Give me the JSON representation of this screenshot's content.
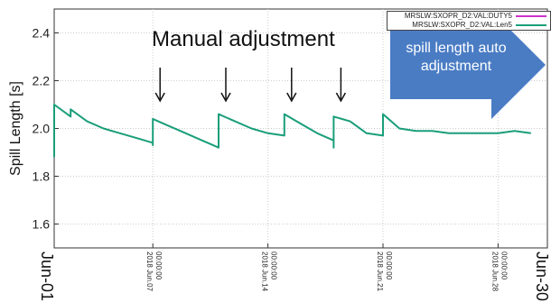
{
  "chart_data": {
    "type": "line",
    "title": "",
    "xlabel": "",
    "ylabel": "Spill Length [s]",
    "x_start": "2018-06-01",
    "x_end": "2018-06-30",
    "ylim": [
      1.5,
      2.5
    ],
    "y_ticks": [
      1.6,
      1.8,
      2.0,
      2.2,
      2.4
    ],
    "x_edge_labels": [
      "Jun-01",
      "Jun-30"
    ],
    "x_tick_labels": [
      {
        "date": "2018-06-07",
        "line1": "2018 Jun.07",
        "line2": "00:00:00"
      },
      {
        "date": "2018-06-14",
        "line1": "2018 Jun.14",
        "line2": "00:00:00"
      },
      {
        "date": "2018-06-21",
        "line1": "2018 Jun.21",
        "line2": "00:00:00"
      },
      {
        "date": "2018-06-28",
        "line1": "2018 Jun.28",
        "line2": "00:00:00"
      }
    ],
    "grid": true,
    "legend_position": "top-right",
    "series": [
      {
        "name": "MRSLW:SXOPR_D2:VAL:DUTY5",
        "color": "#cc33cc",
        "points": []
      },
      {
        "name": "MRSLW:SXOPR_D2:VAL:Len5",
        "color": "#1a9e7a",
        "points": [
          [
            "2018-06-01",
            1.88
          ],
          [
            "2018-06-01",
            2.1
          ],
          [
            "2018-06-02",
            2.05
          ],
          [
            "2018-06-02",
            2.08
          ],
          [
            "2018-06-03",
            2.03
          ],
          [
            "2018-06-04",
            2.0
          ],
          [
            "2018-06-05",
            1.98
          ],
          [
            "2018-06-06",
            1.96
          ],
          [
            "2018-06-07",
            1.94
          ],
          [
            "2018-06-07",
            1.93
          ],
          [
            "2018-06-07",
            2.04
          ],
          [
            "2018-06-08",
            2.01
          ],
          [
            "2018-06-09",
            1.98
          ],
          [
            "2018-06-10",
            1.95
          ],
          [
            "2018-06-11",
            1.92
          ],
          [
            "2018-06-11",
            2.06
          ],
          [
            "2018-06-12",
            2.03
          ],
          [
            "2018-06-13",
            2.0
          ],
          [
            "2018-06-14",
            1.98
          ],
          [
            "2018-06-15",
            1.97
          ],
          [
            "2018-06-15",
            2.06
          ],
          [
            "2018-06-16",
            2.02
          ],
          [
            "2018-06-17",
            1.98
          ],
          [
            "2018-06-18",
            1.95
          ],
          [
            "2018-06-18",
            1.92
          ],
          [
            "2018-06-18",
            2.05
          ],
          [
            "2018-06-19",
            2.03
          ],
          [
            "2018-06-20",
            1.98
          ],
          [
            "2018-06-21",
            1.97
          ],
          [
            "2018-06-21",
            2.06
          ],
          [
            "2018-06-22",
            2.0
          ],
          [
            "2018-06-23",
            1.99
          ],
          [
            "2018-06-24",
            1.99
          ],
          [
            "2018-06-25",
            1.98
          ],
          [
            "2018-06-26",
            1.98
          ],
          [
            "2018-06-27",
            1.98
          ],
          [
            "2018-06-28",
            1.98
          ],
          [
            "2018-06-29",
            1.99
          ],
          [
            "2018-06-30",
            1.98
          ]
        ]
      }
    ],
    "annotations": [
      {
        "text": "Manual adjustment",
        "arrow_dates": [
          "2018-06-07",
          "2018-06-11",
          "2018-06-15",
          "2018-06-18"
        ]
      },
      {
        "text": "spill length auto adjustment",
        "shape": "right-arrow",
        "color": "#4a7cc4"
      }
    ]
  }
}
